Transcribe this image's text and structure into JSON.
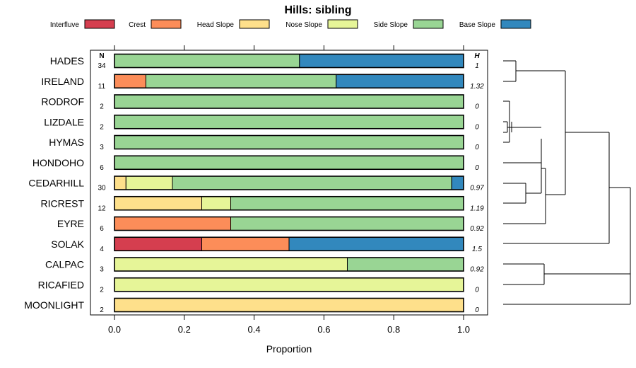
{
  "chart_data": {
    "type": "bar",
    "orientation": "horizontal",
    "stacked": true,
    "title": "Hills: sibling",
    "xlabel": "Proportion",
    "ylabel": "",
    "xlim": [
      0,
      1
    ],
    "xticks": [
      "0.0",
      "0.2",
      "0.4",
      "0.6",
      "0.8",
      "1.0"
    ],
    "n_header": "N",
    "h_header": "H",
    "legend": [
      {
        "name": "Interfluve",
        "color": "#d53e4f"
      },
      {
        "name": "Crest",
        "color": "#fc8d59"
      },
      {
        "name": "Head Slope",
        "color": "#fee08b"
      },
      {
        "name": "Nose Slope",
        "color": "#e6f598"
      },
      {
        "name": "Side Slope",
        "color": "#99d594"
      },
      {
        "name": "Base Slope",
        "color": "#3288bd"
      }
    ],
    "categories": [
      "HADES",
      "IRELAND",
      "RODROF",
      "LIZDALE",
      "HYMAS",
      "HONDOHO",
      "CEDARHILL",
      "RICREST",
      "EYRE",
      "SOLAK",
      "CALPAC",
      "RICAFIED",
      "MOONLIGHT"
    ],
    "n": [
      "34",
      "11",
      "2",
      "2",
      "3",
      "6",
      "30",
      "12",
      "6",
      "4",
      "3",
      "2",
      "2"
    ],
    "h": [
      "1",
      "1.32",
      "0",
      "0",
      "0",
      "0",
      "0.97",
      "1.19",
      "0.92",
      "1.5",
      "0.92",
      "0",
      "0"
    ],
    "series": [
      {
        "name": "Interfluve",
        "values": [
          0,
          0,
          0,
          0,
          0,
          0,
          0,
          0,
          0,
          0.25,
          0,
          0,
          0
        ]
      },
      {
        "name": "Crest",
        "values": [
          0,
          0.09,
          0,
          0,
          0,
          0,
          0,
          0,
          0.333,
          0.25,
          0,
          0,
          0
        ]
      },
      {
        "name": "Head Slope",
        "values": [
          0,
          0,
          0,
          0,
          0,
          0,
          0.033,
          0.25,
          0,
          0,
          0,
          0,
          1
        ]
      },
      {
        "name": "Nose Slope",
        "values": [
          0,
          0,
          0,
          0,
          0,
          0,
          0.133,
          0.083,
          0,
          0,
          0.667,
          1,
          0
        ]
      },
      {
        "name": "Side Slope",
        "values": [
          0.53,
          0.545,
          1,
          1,
          1,
          1,
          0.8,
          0.667,
          0.667,
          0,
          0.333,
          0,
          0
        ]
      },
      {
        "name": "Base Slope",
        "values": [
          0.47,
          0.365,
          0,
          0,
          0,
          0,
          0.034,
          0,
          0,
          0.5,
          0,
          0,
          0
        ]
      }
    ],
    "dendrogram": "hierarchical clustering of rows",
    "legend_position": "top"
  }
}
